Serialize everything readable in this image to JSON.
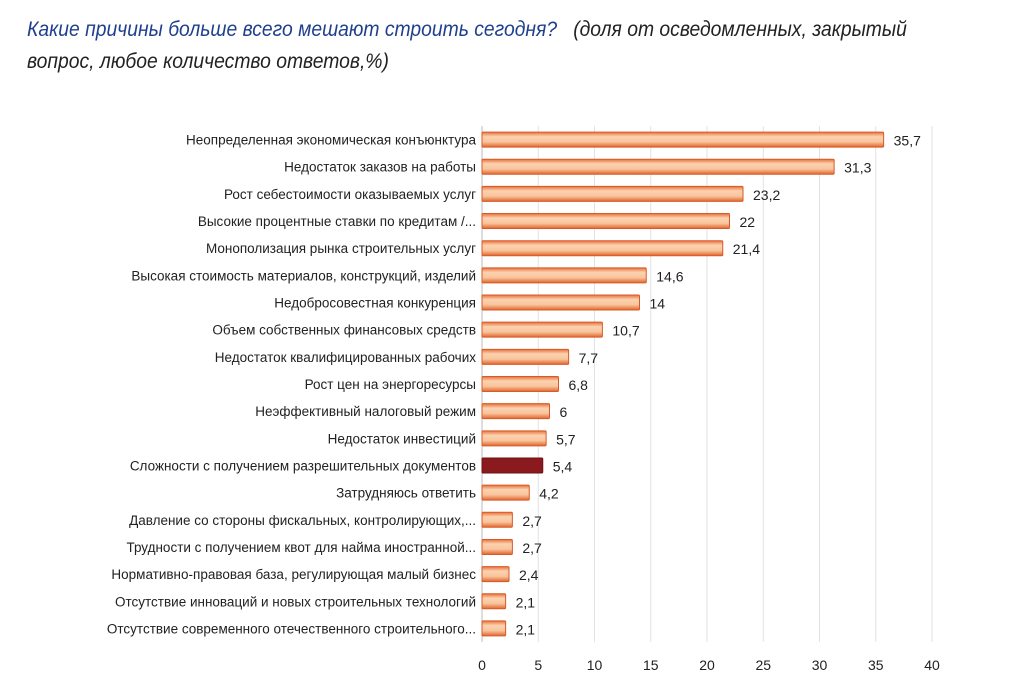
{
  "chart_data": {
    "type": "bar",
    "orientation": "horizontal",
    "title": "Какие причины больше всего мешают строить сегодня?",
    "subtitle": "(доля от осведомленных, закрытый вопрос, любое количество ответов,%)",
    "categories": [
      "Неопределенная экономическая конъюнктура",
      "Недостаток заказов на работы",
      "Рост себестоимости оказываемых услуг",
      "Высокие процентные ставки по кредитам /...",
      "Монополизация рынка строительных услуг",
      "Высокая стоимость материалов, конструкций, изделий",
      "Недобросовестная конкуренция",
      "Объем собственных финансовых средств",
      "Недостаток квалифицированных рабочих",
      "Рост цен на энергоресурсы",
      "Неэффективный налоговый режим",
      "Недостаток инвестиций",
      "Сложности с получением разрешительных документов",
      "Затрудняюсь ответить",
      "Давление со стороны фискальных, контролирующих,...",
      "Трудности с получением квот для найма иностранной...",
      "Нормативно-правовая база, регулирующая малый бизнес",
      "Отсутствие инноваций и новых строительных технологий",
      "Отсутствие современного отечественного строительного..."
    ],
    "values": [
      35.7,
      31.3,
      23.2,
      22,
      21.4,
      14.6,
      14,
      10.7,
      7.7,
      6.8,
      6,
      5.7,
      5.4,
      4.2,
      2.7,
      2.7,
      2.4,
      2.1,
      2.1
    ],
    "value_labels": [
      "35,7",
      "31,3",
      "23,2",
      "22",
      "21,4",
      "14,6",
      "14",
      "10,7",
      "7,7",
      "6,8",
      "6",
      "5,7",
      "5,4",
      "4,2",
      "2,7",
      "2,7",
      "2,4",
      "2,1",
      "2,1"
    ],
    "highlighted_index": 12,
    "xlim": [
      0,
      40
    ],
    "xticks": [
      "0",
      "5",
      "10",
      "15",
      "20",
      "25",
      "30",
      "35",
      "40"
    ],
    "grid": true,
    "colors": {
      "bar": "#f08a4b",
      "bar_light": "#fbd2b0",
      "highlight": "#8b1a1f",
      "title": "#1f3f8f"
    }
  }
}
